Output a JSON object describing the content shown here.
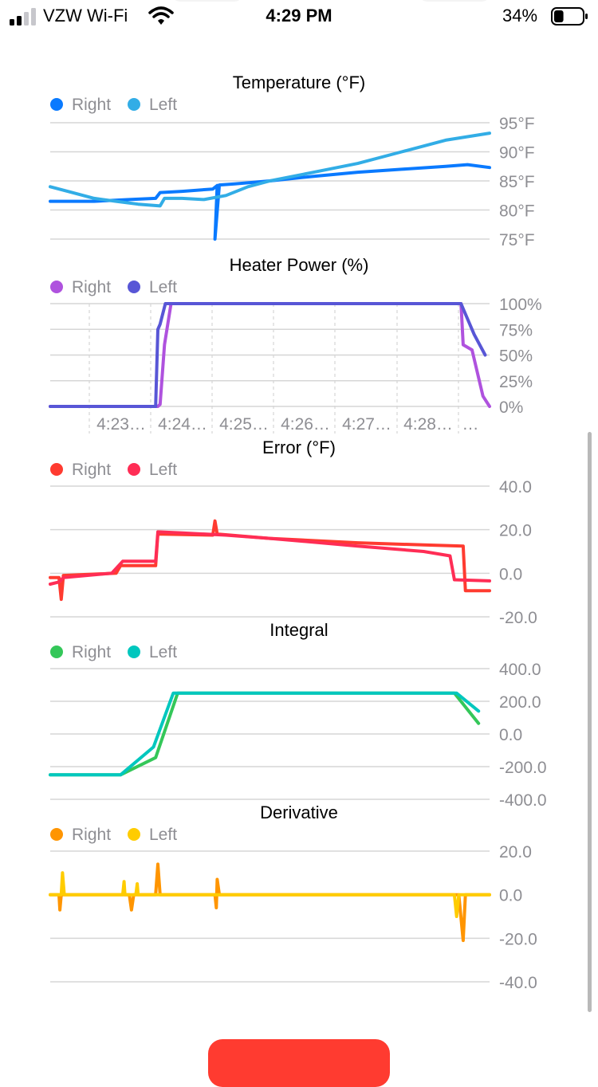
{
  "status_bar": {
    "carrier": "VZW Wi-Fi",
    "time": "4:29 PM",
    "battery_percent": "34%",
    "battery_level": 0.34,
    "icons": [
      "signal-bars-icon",
      "wifi-icon",
      "battery-icon"
    ]
  },
  "colors": {
    "grid": "#d6d6d6",
    "tick_text": "#8e8e93",
    "background": "#ffffff",
    "button": "#ff3b30"
  },
  "chart_data": [
    {
      "id": "temperature",
      "type": "line",
      "title": "Temperature (°F)",
      "yticks": [
        95,
        90,
        85,
        80,
        75
      ],
      "ytick_labels": [
        "95°F",
        "90°F",
        "85°F",
        "80°F",
        "75°F"
      ],
      "ylim": [
        75,
        95
      ],
      "xlim": [
        0,
        1
      ],
      "grid": true,
      "legend_position": "top-left",
      "series": [
        {
          "name": "Right",
          "color": "#0a7aff",
          "points": [
            [
              0,
              81.5
            ],
            [
              0.1,
              81.5
            ],
            [
              0.18,
              81.8
            ],
            [
              0.24,
              82
            ],
            [
              0.25,
              83
            ],
            [
              0.3,
              83.2
            ],
            [
              0.37,
              83.6
            ],
            [
              0.38,
              84.2
            ],
            [
              0.375,
              75
            ],
            [
              0.385,
              84.3
            ],
            [
              0.42,
              84.5
            ],
            [
              0.5,
              85
            ],
            [
              0.6,
              85.8
            ],
            [
              0.7,
              86.5
            ],
            [
              0.8,
              87
            ],
            [
              0.9,
              87.5
            ],
            [
              0.95,
              87.8
            ],
            [
              1,
              87.3
            ]
          ]
        },
        {
          "name": "Left",
          "color": "#32ade6",
          "points": [
            [
              0,
              84
            ],
            [
              0.05,
              83
            ],
            [
              0.1,
              82
            ],
            [
              0.15,
              81.5
            ],
            [
              0.2,
              81
            ],
            [
              0.25,
              80.7
            ],
            [
              0.26,
              82
            ],
            [
              0.3,
              82
            ],
            [
              0.35,
              81.8
            ],
            [
              0.4,
              82.5
            ],
            [
              0.45,
              84
            ],
            [
              0.5,
              85
            ],
            [
              0.6,
              86.5
            ],
            [
              0.7,
              88
            ],
            [
              0.8,
              90
            ],
            [
              0.9,
              92
            ],
            [
              1,
              93.2
            ]
          ]
        }
      ]
    },
    {
      "id": "heater_power",
      "type": "line",
      "title": "Heater Power (%)",
      "yticks": [
        100,
        75,
        50,
        25,
        0
      ],
      "ytick_labels": [
        "100%",
        "75%",
        "50%",
        "25%",
        "0%"
      ],
      "ylim": [
        0,
        100
      ],
      "xlim": [
        0,
        1
      ],
      "xtick_labels": [
        "4:23…",
        "4:24…",
        "4:25…",
        "4:26…",
        "4:27…",
        "4:28…",
        "…"
      ],
      "grid": true,
      "legend_position": "top-left",
      "series": [
        {
          "name": "Right",
          "color": "#af52de",
          "points": [
            [
              0,
              0
            ],
            [
              0.245,
              0
            ],
            [
              0.25,
              2
            ],
            [
              0.26,
              60
            ],
            [
              0.275,
              100
            ],
            [
              0.35,
              100
            ],
            [
              0.6,
              100
            ],
            [
              0.8,
              100
            ],
            [
              0.935,
              100
            ],
            [
              0.94,
              60
            ],
            [
              0.96,
              55
            ],
            [
              0.985,
              10
            ],
            [
              1,
              0
            ]
          ]
        },
        {
          "name": "Left",
          "color": "#5856d6",
          "points": [
            [
              0,
              0
            ],
            [
              0.24,
              0
            ],
            [
              0.245,
              75
            ],
            [
              0.25,
              80
            ],
            [
              0.262,
              100
            ],
            [
              0.5,
              100
            ],
            [
              0.935,
              100
            ],
            [
              0.94,
              95
            ],
            [
              0.965,
              70
            ],
            [
              0.99,
              50
            ]
          ]
        }
      ]
    },
    {
      "id": "error",
      "type": "line",
      "title": "Error (°F)",
      "yticks": [
        40,
        20,
        0,
        -20
      ],
      "ytick_labels": [
        "40.0",
        "20.0",
        "0.0",
        "-20.0"
      ],
      "ylim": [
        -20,
        40
      ],
      "xlim": [
        0,
        1
      ],
      "grid": true,
      "legend_position": "top-left",
      "series": [
        {
          "name": "Right",
          "color": "#ff3b30",
          "points": [
            [
              0,
              -2
            ],
            [
              0.02,
              -2
            ],
            [
              0.025,
              -12
            ],
            [
              0.03,
              -1
            ],
            [
              0.15,
              0
            ],
            [
              0.16,
              3.5
            ],
            [
              0.24,
              3.5
            ],
            [
              0.245,
              18
            ],
            [
              0.37,
              17.5
            ],
            [
              0.375,
              24
            ],
            [
              0.38,
              18
            ],
            [
              0.5,
              16
            ],
            [
              0.7,
              14
            ],
            [
              0.85,
              13
            ],
            [
              0.94,
              12.5
            ],
            [
              0.945,
              -8
            ],
            [
              1,
              -8
            ]
          ]
        },
        {
          "name": "Left",
          "color": "#ff2d55",
          "points": [
            [
              0,
              -5
            ],
            [
              0.02,
              -4
            ],
            [
              0.03,
              -2
            ],
            [
              0.14,
              0
            ],
            [
              0.165,
              5.5
            ],
            [
              0.24,
              5.5
            ],
            [
              0.245,
              19
            ],
            [
              0.3,
              18.5
            ],
            [
              0.4,
              17.5
            ],
            [
              0.5,
              16
            ],
            [
              0.7,
              12.5
            ],
            [
              0.85,
              10
            ],
            [
              0.91,
              8
            ],
            [
              0.92,
              -3
            ],
            [
              1,
              -3.5
            ]
          ]
        }
      ]
    },
    {
      "id": "integral",
      "type": "line",
      "title": "Integral",
      "yticks": [
        400,
        200,
        0,
        -200,
        -400
      ],
      "ytick_labels": [
        "400.0",
        "200.0",
        "0.0",
        "-200.0",
        "-400.0"
      ],
      "ylim": [
        -400,
        400
      ],
      "xlim": [
        0,
        1
      ],
      "grid": true,
      "legend_position": "top-left",
      "series": [
        {
          "name": "Right",
          "color": "#34c759",
          "points": [
            [
              0,
              -250
            ],
            [
              0.16,
              -250
            ],
            [
              0.24,
              -145
            ],
            [
              0.29,
              250
            ],
            [
              0.92,
              250
            ],
            [
              0.975,
              65
            ]
          ]
        },
        {
          "name": "Left",
          "color": "#00c7be",
          "points": [
            [
              0,
              -250
            ],
            [
              0.16,
              -250
            ],
            [
              0.235,
              -80
            ],
            [
              0.28,
              250
            ],
            [
              0.925,
              250
            ],
            [
              0.975,
              140
            ]
          ]
        }
      ]
    },
    {
      "id": "derivative",
      "type": "line",
      "title": "Derivative",
      "yticks": [
        20,
        0,
        -20,
        -40
      ],
      "ytick_labels": [
        "20.0",
        "0.0",
        "-20.0",
        "-40.0"
      ],
      "ylim": [
        -40,
        20
      ],
      "xlim": [
        0,
        1
      ],
      "grid": true,
      "legend_position": "top-left",
      "series": [
        {
          "name": "Right",
          "color": "#ff9500",
          "points": [
            [
              0,
              0
            ],
            [
              0.02,
              0
            ],
            [
              0.022,
              -7
            ],
            [
              0.025,
              0
            ],
            [
              0.18,
              0
            ],
            [
              0.185,
              -7
            ],
            [
              0.19,
              0
            ],
            [
              0.24,
              0
            ],
            [
              0.245,
              14
            ],
            [
              0.25,
              0
            ],
            [
              0.375,
              0
            ],
            [
              0.378,
              -6
            ],
            [
              0.38,
              7
            ],
            [
              0.385,
              0
            ],
            [
              0.93,
              0
            ],
            [
              0.94,
              -21
            ],
            [
              0.945,
              0
            ],
            [
              1,
              0
            ]
          ]
        },
        {
          "name": "Left",
          "color": "#ffcc00",
          "points": [
            [
              0,
              0
            ],
            [
              0.025,
              0
            ],
            [
              0.028,
              10
            ],
            [
              0.032,
              0
            ],
            [
              0.165,
              0
            ],
            [
              0.168,
              6
            ],
            [
              0.17,
              0
            ],
            [
              0.195,
              0
            ],
            [
              0.198,
              5
            ],
            [
              0.2,
              0
            ],
            [
              0.92,
              0
            ],
            [
              0.925,
              -10
            ],
            [
              0.93,
              0
            ],
            [
              1,
              0
            ]
          ]
        }
      ]
    }
  ]
}
